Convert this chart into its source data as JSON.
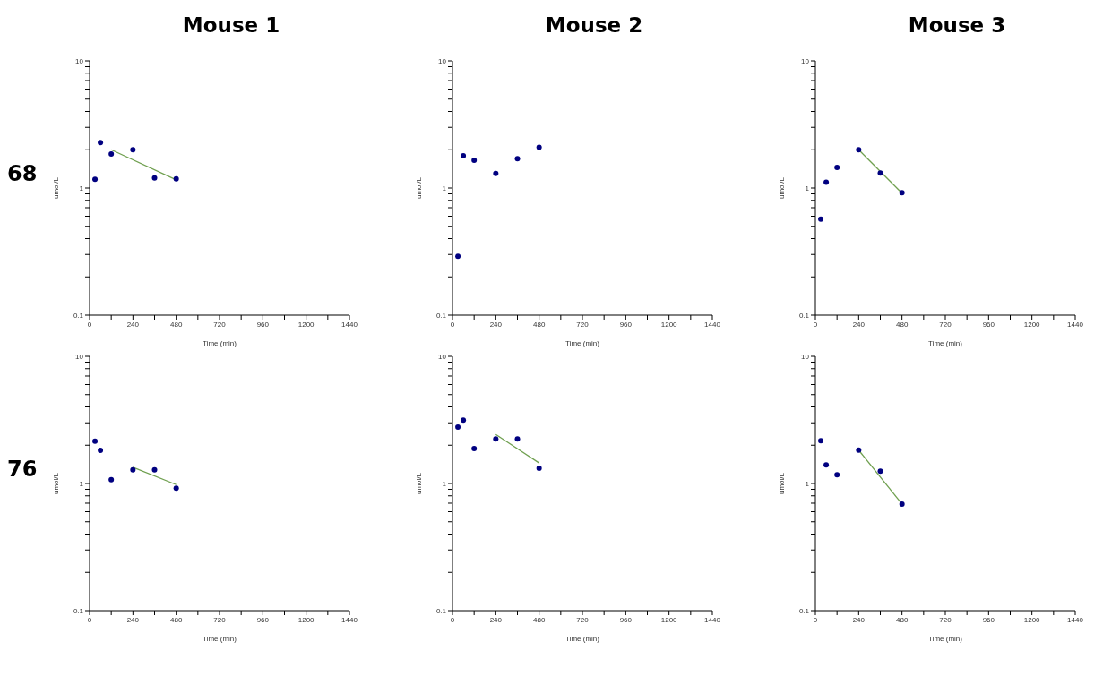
{
  "chart_data": [
    {
      "type": "scatter",
      "title": "Mouse 1",
      "annotations": [
        "68"
      ],
      "xlabel": "Time (min)",
      "ylabel": "umol/L",
      "xlim": [
        0,
        1440
      ],
      "xticks": [
        0,
        {
          "value": 120,
          "label": null
        },
        240,
        {
          "value": 360,
          "label": null
        },
        480,
        {
          "value": 600,
          "label": null
        },
        720,
        {
          "value": 840,
          "label": null
        },
        960,
        {
          "value": 1080,
          "label": null
        },
        1200,
        {
          "value": 1320,
          "label": null
        },
        1440
      ],
      "ylim": [
        0.1,
        10
      ],
      "yticks": [
        0.1,
        {
          "value": 0.2,
          "label": null
        },
        {
          "value": 0.3,
          "label": null
        },
        {
          "value": 0.4,
          "label": null
        },
        {
          "value": 0.5,
          "label": null
        },
        {
          "value": 0.6,
          "label": null
        },
        {
          "value": 0.7,
          "label": null
        },
        {
          "value": 0.8,
          "label": null
        },
        {
          "value": 0.9,
          "label": null
        },
        1,
        {
          "value": 2,
          "label": null
        },
        {
          "value": 3,
          "label": null
        },
        {
          "value": 4,
          "label": null
        },
        {
          "value": 5,
          "label": null
        },
        {
          "value": 6,
          "label": null
        },
        {
          "value": 7,
          "label": null
        },
        {
          "value": 8,
          "label": null
        },
        {
          "value": 9,
          "label": null
        },
        10
      ],
      "log": true,
      "marker": "circle",
      "series": [
        {
          "color": "#000080",
          "x": [
            30,
            60,
            120,
            240,
            360,
            480
          ],
          "values": [
            1.17,
            2.28,
            1.85,
            2.0,
            1.2,
            1.18
          ]
        },
        {
          "type": "line",
          "color": "#70a050",
          "x": [
            120,
            480
          ],
          "values": [
            2.0,
            1.16
          ],
          "marker": "none"
        }
      ]
    },
    {
      "type": "scatter",
      "title": "Mouse 2",
      "xlabel": "Time (min)",
      "ylabel": "umol/L",
      "xlim": [
        0,
        1440
      ],
      "xticks": [
        0,
        {
          "value": 120,
          "label": null
        },
        240,
        {
          "value": 360,
          "label": null
        },
        480,
        {
          "value": 600,
          "label": null
        },
        720,
        {
          "value": 840,
          "label": null
        },
        960,
        {
          "value": 1080,
          "label": null
        },
        1200,
        {
          "value": 1320,
          "label": null
        },
        1440
      ],
      "ylim": [
        0.1,
        10
      ],
      "yticks": [
        0.1,
        {
          "value": 0.2,
          "label": null
        },
        {
          "value": 0.3,
          "label": null
        },
        {
          "value": 0.4,
          "label": null
        },
        {
          "value": 0.5,
          "label": null
        },
        {
          "value": 0.6,
          "label": null
        },
        {
          "value": 0.7,
          "label": null
        },
        {
          "value": 0.8,
          "label": null
        },
        {
          "value": 0.9,
          "label": null
        },
        1,
        {
          "value": 2,
          "label": null
        },
        {
          "value": 3,
          "label": null
        },
        {
          "value": 4,
          "label": null
        },
        {
          "value": 5,
          "label": null
        },
        {
          "value": 6,
          "label": null
        },
        {
          "value": 7,
          "label": null
        },
        {
          "value": 8,
          "label": null
        },
        {
          "value": 9,
          "label": null
        },
        10
      ],
      "log": true,
      "marker": "circle",
      "series": [
        {
          "color": "#000080",
          "x": [
            30,
            60,
            120,
            240,
            360,
            480
          ],
          "values": [
            0.29,
            1.79,
            1.65,
            1.3,
            1.7,
            2.09
          ]
        }
      ]
    },
    {
      "type": "scatter",
      "title": "Mouse 3",
      "xlabel": "Time (min)",
      "ylabel": "umol/L",
      "xlim": [
        0,
        1440
      ],
      "xticks": [
        0,
        {
          "value": 120,
          "label": null
        },
        240,
        {
          "value": 360,
          "label": null
        },
        480,
        {
          "value": 600,
          "label": null
        },
        720,
        {
          "value": 840,
          "label": null
        },
        960,
        {
          "value": 1080,
          "label": null
        },
        1200,
        {
          "value": 1320,
          "label": null
        },
        1440
      ],
      "ylim": [
        0.1,
        10
      ],
      "yticks": [
        0.1,
        {
          "value": 0.2,
          "label": null
        },
        {
          "value": 0.3,
          "label": null
        },
        {
          "value": 0.4,
          "label": null
        },
        {
          "value": 0.5,
          "label": null
        },
        {
          "value": 0.6,
          "label": null
        },
        {
          "value": 0.7,
          "label": null
        },
        {
          "value": 0.8,
          "label": null
        },
        {
          "value": 0.9,
          "label": null
        },
        1,
        {
          "value": 2,
          "label": null
        },
        {
          "value": 3,
          "label": null
        },
        {
          "value": 4,
          "label": null
        },
        {
          "value": 5,
          "label": null
        },
        {
          "value": 6,
          "label": null
        },
        {
          "value": 7,
          "label": null
        },
        {
          "value": 8,
          "label": null
        },
        {
          "value": 9,
          "label": null
        },
        10
      ],
      "log": true,
      "marker": "circle",
      "series": [
        {
          "color": "#000080",
          "x": [
            30,
            60,
            120,
            240,
            360,
            480
          ],
          "values": [
            0.57,
            1.11,
            1.45,
            2.0,
            1.31,
            0.92
          ]
        },
        {
          "type": "line",
          "color": "#70a050",
          "x": [
            240,
            480
          ],
          "values": [
            2.0,
            0.91
          ],
          "marker": "none"
        }
      ]
    },
    {
      "type": "scatter",
      "annotations": [
        "76"
      ],
      "xlabel": "Time (min)",
      "ylabel": "umol/L",
      "xlim": [
        0,
        1440
      ],
      "xticks": [
        0,
        {
          "value": 120,
          "label": null
        },
        240,
        {
          "value": 360,
          "label": null
        },
        480,
        {
          "value": 600,
          "label": null
        },
        720,
        {
          "value": 840,
          "label": null
        },
        960,
        {
          "value": 1080,
          "label": null
        },
        1200,
        {
          "value": 1320,
          "label": null
        },
        1440
      ],
      "ylim": [
        0.1,
        10
      ],
      "yticks": [
        0.1,
        {
          "value": 0.2,
          "label": null
        },
        {
          "value": 0.3,
          "label": null
        },
        {
          "value": 0.4,
          "label": null
        },
        {
          "value": 0.5,
          "label": null
        },
        {
          "value": 0.6,
          "label": null
        },
        {
          "value": 0.7,
          "label": null
        },
        {
          "value": 0.8,
          "label": null
        },
        {
          "value": 0.9,
          "label": null
        },
        1,
        {
          "value": 2,
          "label": null
        },
        {
          "value": 3,
          "label": null
        },
        {
          "value": 4,
          "label": null
        },
        {
          "value": 5,
          "label": null
        },
        {
          "value": 6,
          "label": null
        },
        {
          "value": 7,
          "label": null
        },
        {
          "value": 8,
          "label": null
        },
        {
          "value": 9,
          "label": null
        },
        10
      ],
      "log": true,
      "marker": "circle",
      "series": [
        {
          "color": "#000080",
          "x": [
            30,
            60,
            120,
            240,
            360,
            480
          ],
          "values": [
            2.15,
            1.82,
            1.07,
            1.28,
            1.28,
            0.92
          ]
        },
        {
          "type": "line",
          "color": "#70a050",
          "x": [
            240,
            480
          ],
          "values": [
            1.34,
            0.98
          ],
          "marker": "none"
        }
      ]
    },
    {
      "type": "scatter",
      "xlabel": "Time (min)",
      "ylabel": "umol/L",
      "xlim": [
        0,
        1440
      ],
      "xticks": [
        0,
        {
          "value": 120,
          "label": null
        },
        240,
        {
          "value": 360,
          "label": null
        },
        480,
        {
          "value": 600,
          "label": null
        },
        720,
        {
          "value": 840,
          "label": null
        },
        960,
        {
          "value": 1080,
          "label": null
        },
        1200,
        {
          "value": 1320,
          "label": null
        },
        1440
      ],
      "ylim": [
        0.1,
        10
      ],
      "yticks": [
        0.1,
        {
          "value": 0.2,
          "label": null
        },
        {
          "value": 0.3,
          "label": null
        },
        {
          "value": 0.4,
          "label": null
        },
        {
          "value": 0.5,
          "label": null
        },
        {
          "value": 0.6,
          "label": null
        },
        {
          "value": 0.7,
          "label": null
        },
        {
          "value": 0.8,
          "label": null
        },
        {
          "value": 0.9,
          "label": null
        },
        1,
        {
          "value": 2,
          "label": null
        },
        {
          "value": 3,
          "label": null
        },
        {
          "value": 4,
          "label": null
        },
        {
          "value": 5,
          "label": null
        },
        {
          "value": 6,
          "label": null
        },
        {
          "value": 7,
          "label": null
        },
        {
          "value": 8,
          "label": null
        },
        {
          "value": 9,
          "label": null
        },
        10
      ],
      "log": true,
      "marker": "circle",
      "series": [
        {
          "color": "#000080",
          "x": [
            30,
            60,
            120,
            240,
            360,
            480
          ],
          "values": [
            2.78,
            3.15,
            1.88,
            2.24,
            2.24,
            1.32
          ]
        },
        {
          "type": "line",
          "color": "#70a050",
          "x": [
            240,
            480
          ],
          "values": [
            2.43,
            1.45
          ],
          "marker": "none"
        }
      ]
    },
    {
      "type": "scatter",
      "xlabel": "Time (min)",
      "ylabel": "umol/L",
      "xlim": [
        0,
        1440
      ],
      "xticks": [
        0,
        {
          "value": 120,
          "label": null
        },
        240,
        {
          "value": 360,
          "label": null
        },
        480,
        {
          "value": 600,
          "label": null
        },
        720,
        {
          "value": 840,
          "label": null
        },
        960,
        {
          "value": 1080,
          "label": null
        },
        1200,
        {
          "value": 1320,
          "label": null
        },
        1440
      ],
      "ylim": [
        0.1,
        10
      ],
      "yticks": [
        0.1,
        {
          "value": 0.2,
          "label": null
        },
        {
          "value": 0.3,
          "label": null
        },
        {
          "value": 0.4,
          "label": null
        },
        {
          "value": 0.5,
          "label": null
        },
        {
          "value": 0.6,
          "label": null
        },
        {
          "value": 0.7,
          "label": null
        },
        {
          "value": 0.8,
          "label": null
        },
        {
          "value": 0.9,
          "label": null
        },
        1,
        {
          "value": 2,
          "label": null
        },
        {
          "value": 3,
          "label": null
        },
        {
          "value": 4,
          "label": null
        },
        {
          "value": 5,
          "label": null
        },
        {
          "value": 6,
          "label": null
        },
        {
          "value": 7,
          "label": null
        },
        {
          "value": 8,
          "label": null
        },
        {
          "value": 9,
          "label": null
        },
        10
      ],
      "log": true,
      "marker": "circle",
      "series": [
        {
          "color": "#000080",
          "x": [
            30,
            60,
            120,
            240,
            360,
            480
          ],
          "values": [
            2.17,
            1.4,
            1.17,
            1.83,
            1.25,
            0.69
          ]
        },
        {
          "type": "line",
          "color": "#70a050",
          "x": [
            240,
            480
          ],
          "values": [
            1.83,
            0.69
          ],
          "marker": "none"
        }
      ]
    }
  ]
}
